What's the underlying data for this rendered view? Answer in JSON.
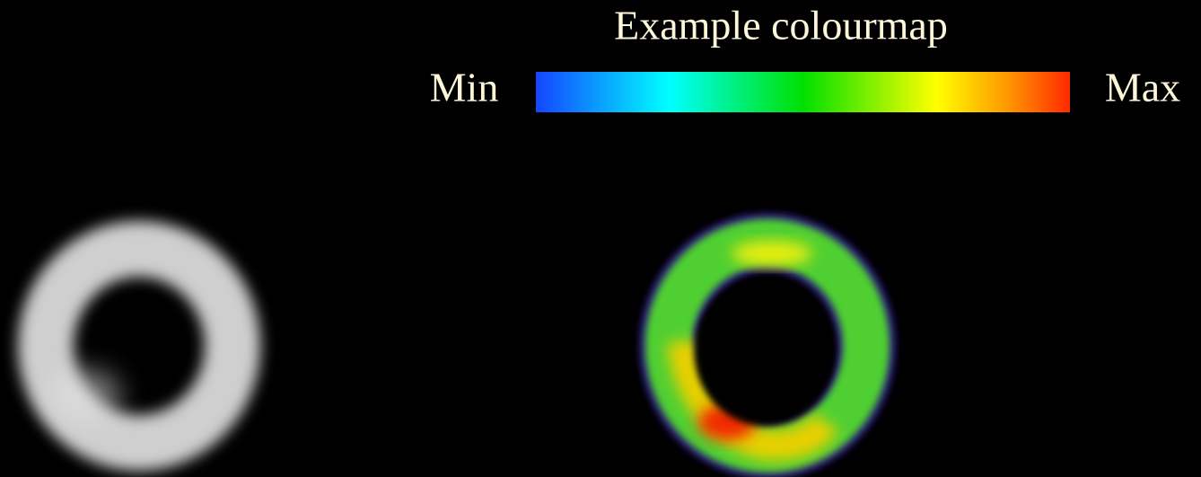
{
  "title": "Example colourmap",
  "colourbar": {
    "min_label": "Min",
    "max_label": "Max"
  }
}
